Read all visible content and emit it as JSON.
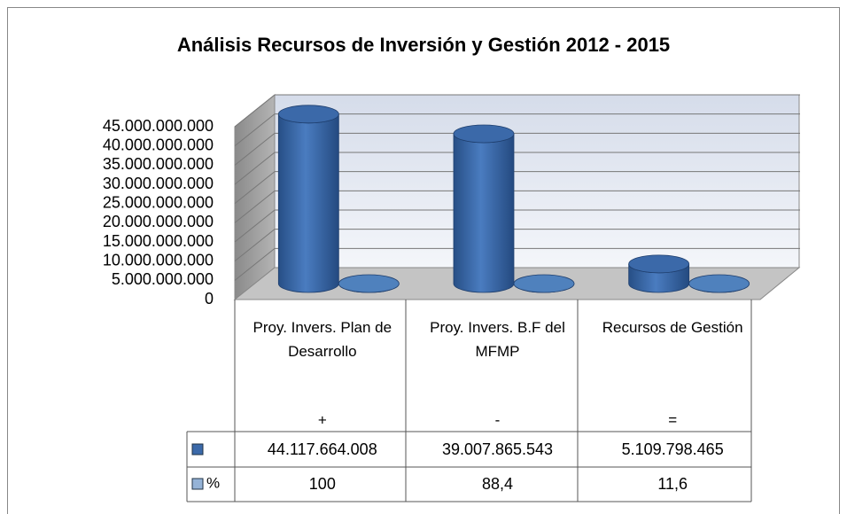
{
  "chart_data": {
    "type": "cylinder3d",
    "title": "Análisis Recursos de Inversión y Gestión 2012 - 2015",
    "categories": [
      "Proy. Invers. Plan de Desarrollo",
      "Proy. Invers. B.F del MFMP",
      "Recursos de Gestión"
    ],
    "category_signs": [
      "+",
      "-",
      "="
    ],
    "series": [
      {
        "color": "#3b69a9",
        "values": [
          44117664008,
          39007865543,
          5109798465
        ],
        "value_labels": [
          "44.117.664.008",
          "39.007.865.543",
          "5.109.798.465"
        ]
      },
      {
        "name": "%",
        "color": "#4f81bd",
        "values": [
          100,
          88.4,
          11.6
        ],
        "value_labels": [
          "100",
          "88,4",
          "11,6"
        ]
      }
    ],
    "ylim": [
      0,
      45000000000
    ],
    "yticks": [
      0,
      {
        "value": 5000000000,
        "label": "5.000.000.000"
      },
      {
        "value": 10000000000,
        "label": "10.000.000.000"
      },
      {
        "value": 15000000000,
        "label": "15.000.000.000"
      },
      {
        "value": 20000000000,
        "label": "20.000.000.000"
      },
      {
        "value": 25000000000,
        "label": "25.000.000.000"
      },
      {
        "value": 30000000000,
        "label": "30.000.000.000"
      },
      {
        "value": 35000000000,
        "label": "35.000.000.000"
      },
      {
        "value": 40000000000,
        "label": "40.000.000.000"
      },
      {
        "value": 45000000000,
        "label": "45.000.000.000"
      }
    ],
    "grid": true
  }
}
